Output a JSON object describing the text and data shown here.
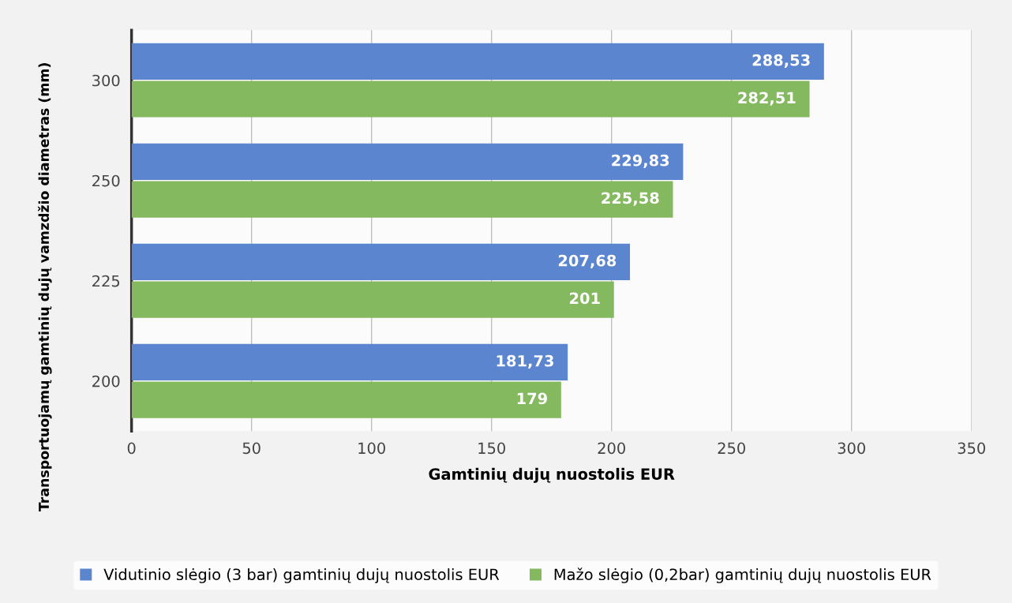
{
  "chart_data": {
    "type": "bar",
    "orientation": "horizontal",
    "xlabel": "Gamtinių dujų nuostolis EUR",
    "ylabel": "Transportuojamų gamtinių dujų vamzdžio diametras (mm)",
    "categories": [
      "300",
      "250",
      "225",
      "200"
    ],
    "series": [
      {
        "name": "Vidutinio slėgio (3 bar) gamtinių dujų nuostolis EUR",
        "color": "#5b86cf",
        "values": [
          288.53,
          229.83,
          207.68,
          181.73
        ],
        "value_labels": [
          "288,53",
          "229,83",
          "207,68",
          "181,73"
        ]
      },
      {
        "name": "Mažo slėgio (0,2bar) gamtinių dujų nuostolis EUR",
        "color": "#84b960",
        "values": [
          282.51,
          225.58,
          201,
          179
        ],
        "value_labels": [
          "282,51",
          "225,58",
          "201",
          "179"
        ]
      }
    ],
    "xlim": [
      0,
      350
    ],
    "xticks": [
      0,
      50,
      100,
      150,
      200,
      250,
      300,
      350
    ],
    "grid": "x",
    "legend": "bottom"
  }
}
